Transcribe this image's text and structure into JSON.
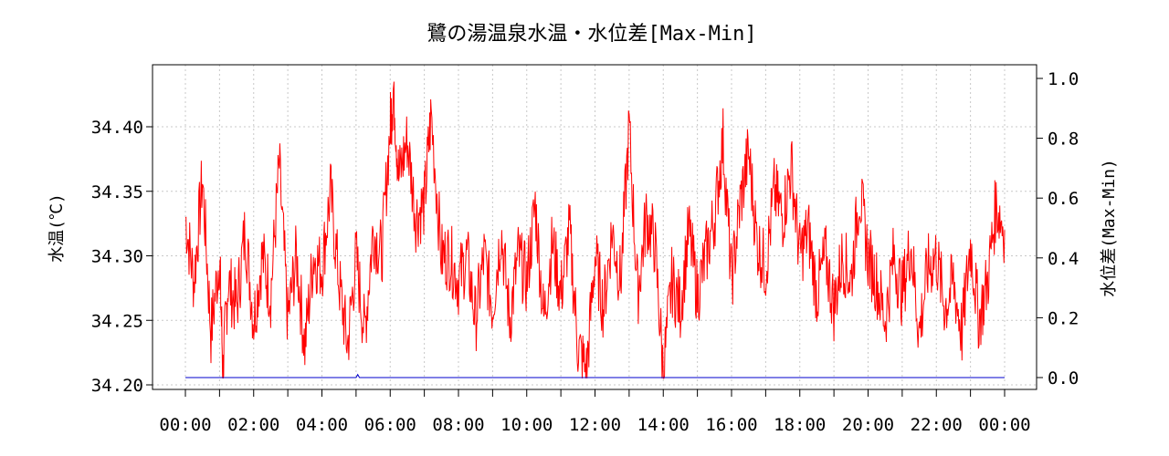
{
  "chart_data": {
    "type": "line",
    "title": "鷺の湯温泉水温・水位差[Max-Min]",
    "ylabel_left": "水温(℃)",
    "ylabel_right": "水位差(Max-Min)",
    "xlim_hours": [
      0,
      24
    ],
    "x_ticks": [
      "00:00",
      "02:00",
      "04:00",
      "06:00",
      "08:00",
      "10:00",
      "12:00",
      "14:00",
      "16:00",
      "18:00",
      "20:00",
      "22:00",
      "00:00"
    ],
    "y_left_ticks": [
      "34.20",
      "34.25",
      "34.30",
      "34.35",
      "34.40"
    ],
    "y_right_ticks": [
      "0.0",
      "0.2",
      "0.4",
      "0.6",
      "0.8",
      "1.0"
    ],
    "ylim_left": [
      34.2,
      34.44
    ],
    "ylim_right": [
      -0.05,
      1.05
    ],
    "grid": true,
    "series": [
      {
        "axis": "left",
        "color": "#ff0000",
        "points": [
          [
            0.0,
            34.33
          ],
          [
            0.25,
            34.28
          ],
          [
            0.5,
            34.36
          ],
          [
            0.75,
            34.24
          ],
          [
            1.0,
            34.3
          ],
          [
            1.1,
            34.21
          ],
          [
            1.25,
            34.28
          ],
          [
            1.5,
            34.26
          ],
          [
            1.75,
            34.32
          ],
          [
            2.0,
            34.25
          ],
          [
            2.25,
            34.3
          ],
          [
            2.5,
            34.27
          ],
          [
            2.75,
            34.37
          ],
          [
            3.0,
            34.25
          ],
          [
            3.25,
            34.3
          ],
          [
            3.5,
            34.23
          ],
          [
            3.75,
            34.3
          ],
          [
            4.0,
            34.29
          ],
          [
            4.25,
            34.35
          ],
          [
            4.5,
            34.28
          ],
          [
            4.75,
            34.23
          ],
          [
            5.0,
            34.3
          ],
          [
            5.25,
            34.24
          ],
          [
            5.5,
            34.32
          ],
          [
            5.75,
            34.3
          ],
          [
            6.0,
            34.4
          ],
          [
            6.1,
            34.43
          ],
          [
            6.25,
            34.36
          ],
          [
            6.5,
            34.39
          ],
          [
            6.75,
            34.33
          ],
          [
            7.0,
            34.34
          ],
          [
            7.2,
            34.41
          ],
          [
            7.5,
            34.3
          ],
          [
            7.75,
            34.3
          ],
          [
            8.0,
            34.28
          ],
          [
            8.25,
            34.3
          ],
          [
            8.5,
            34.25
          ],
          [
            8.75,
            34.3
          ],
          [
            9.0,
            34.26
          ],
          [
            9.25,
            34.32
          ],
          [
            9.5,
            34.25
          ],
          [
            9.75,
            34.3
          ],
          [
            10.0,
            34.28
          ],
          [
            10.25,
            34.34
          ],
          [
            10.5,
            34.25
          ],
          [
            10.75,
            34.31
          ],
          [
            11.0,
            34.27
          ],
          [
            11.25,
            34.32
          ],
          [
            11.5,
            34.23
          ],
          [
            11.75,
            34.21
          ],
          [
            12.0,
            34.3
          ],
          [
            12.25,
            34.26
          ],
          [
            12.5,
            34.32
          ],
          [
            12.75,
            34.28
          ],
          [
            13.0,
            34.4
          ],
          [
            13.25,
            34.27
          ],
          [
            13.5,
            34.33
          ],
          [
            13.75,
            34.31
          ],
          [
            14.0,
            34.21
          ],
          [
            14.25,
            34.28
          ],
          [
            14.5,
            34.26
          ],
          [
            14.75,
            34.32
          ],
          [
            15.0,
            34.27
          ],
          [
            15.25,
            34.3
          ],
          [
            15.5,
            34.33
          ],
          [
            15.75,
            34.39
          ],
          [
            16.0,
            34.28
          ],
          [
            16.25,
            34.34
          ],
          [
            16.5,
            34.38
          ],
          [
            16.75,
            34.31
          ],
          [
            17.0,
            34.29
          ],
          [
            17.25,
            34.35
          ],
          [
            17.5,
            34.33
          ],
          [
            17.75,
            34.37
          ],
          [
            18.0,
            34.3
          ],
          [
            18.25,
            34.32
          ],
          [
            18.5,
            34.27
          ],
          [
            18.75,
            34.3
          ],
          [
            19.0,
            34.26
          ],
          [
            19.25,
            34.3
          ],
          [
            19.5,
            34.28
          ],
          [
            19.75,
            34.35
          ],
          [
            20.0,
            34.3
          ],
          [
            20.25,
            34.28
          ],
          [
            20.5,
            34.25
          ],
          [
            20.75,
            34.3
          ],
          [
            21.0,
            34.27
          ],
          [
            21.25,
            34.31
          ],
          [
            21.5,
            34.24
          ],
          [
            21.75,
            34.29
          ],
          [
            22.0,
            34.3
          ],
          [
            22.25,
            34.26
          ],
          [
            22.5,
            34.28
          ],
          [
            22.75,
            34.24
          ],
          [
            23.0,
            34.31
          ],
          [
            23.25,
            34.25
          ],
          [
            23.5,
            34.28
          ],
          [
            23.75,
            34.34
          ],
          [
            24.0,
            34.32
          ]
        ]
      },
      {
        "axis": "right",
        "color": "#0000cc",
        "points": [
          [
            0.0,
            0.0
          ],
          [
            5.0,
            0.0
          ],
          [
            5.05,
            0.01
          ],
          [
            5.1,
            0.0
          ],
          [
            24.0,
            0.0
          ]
        ]
      }
    ]
  }
}
